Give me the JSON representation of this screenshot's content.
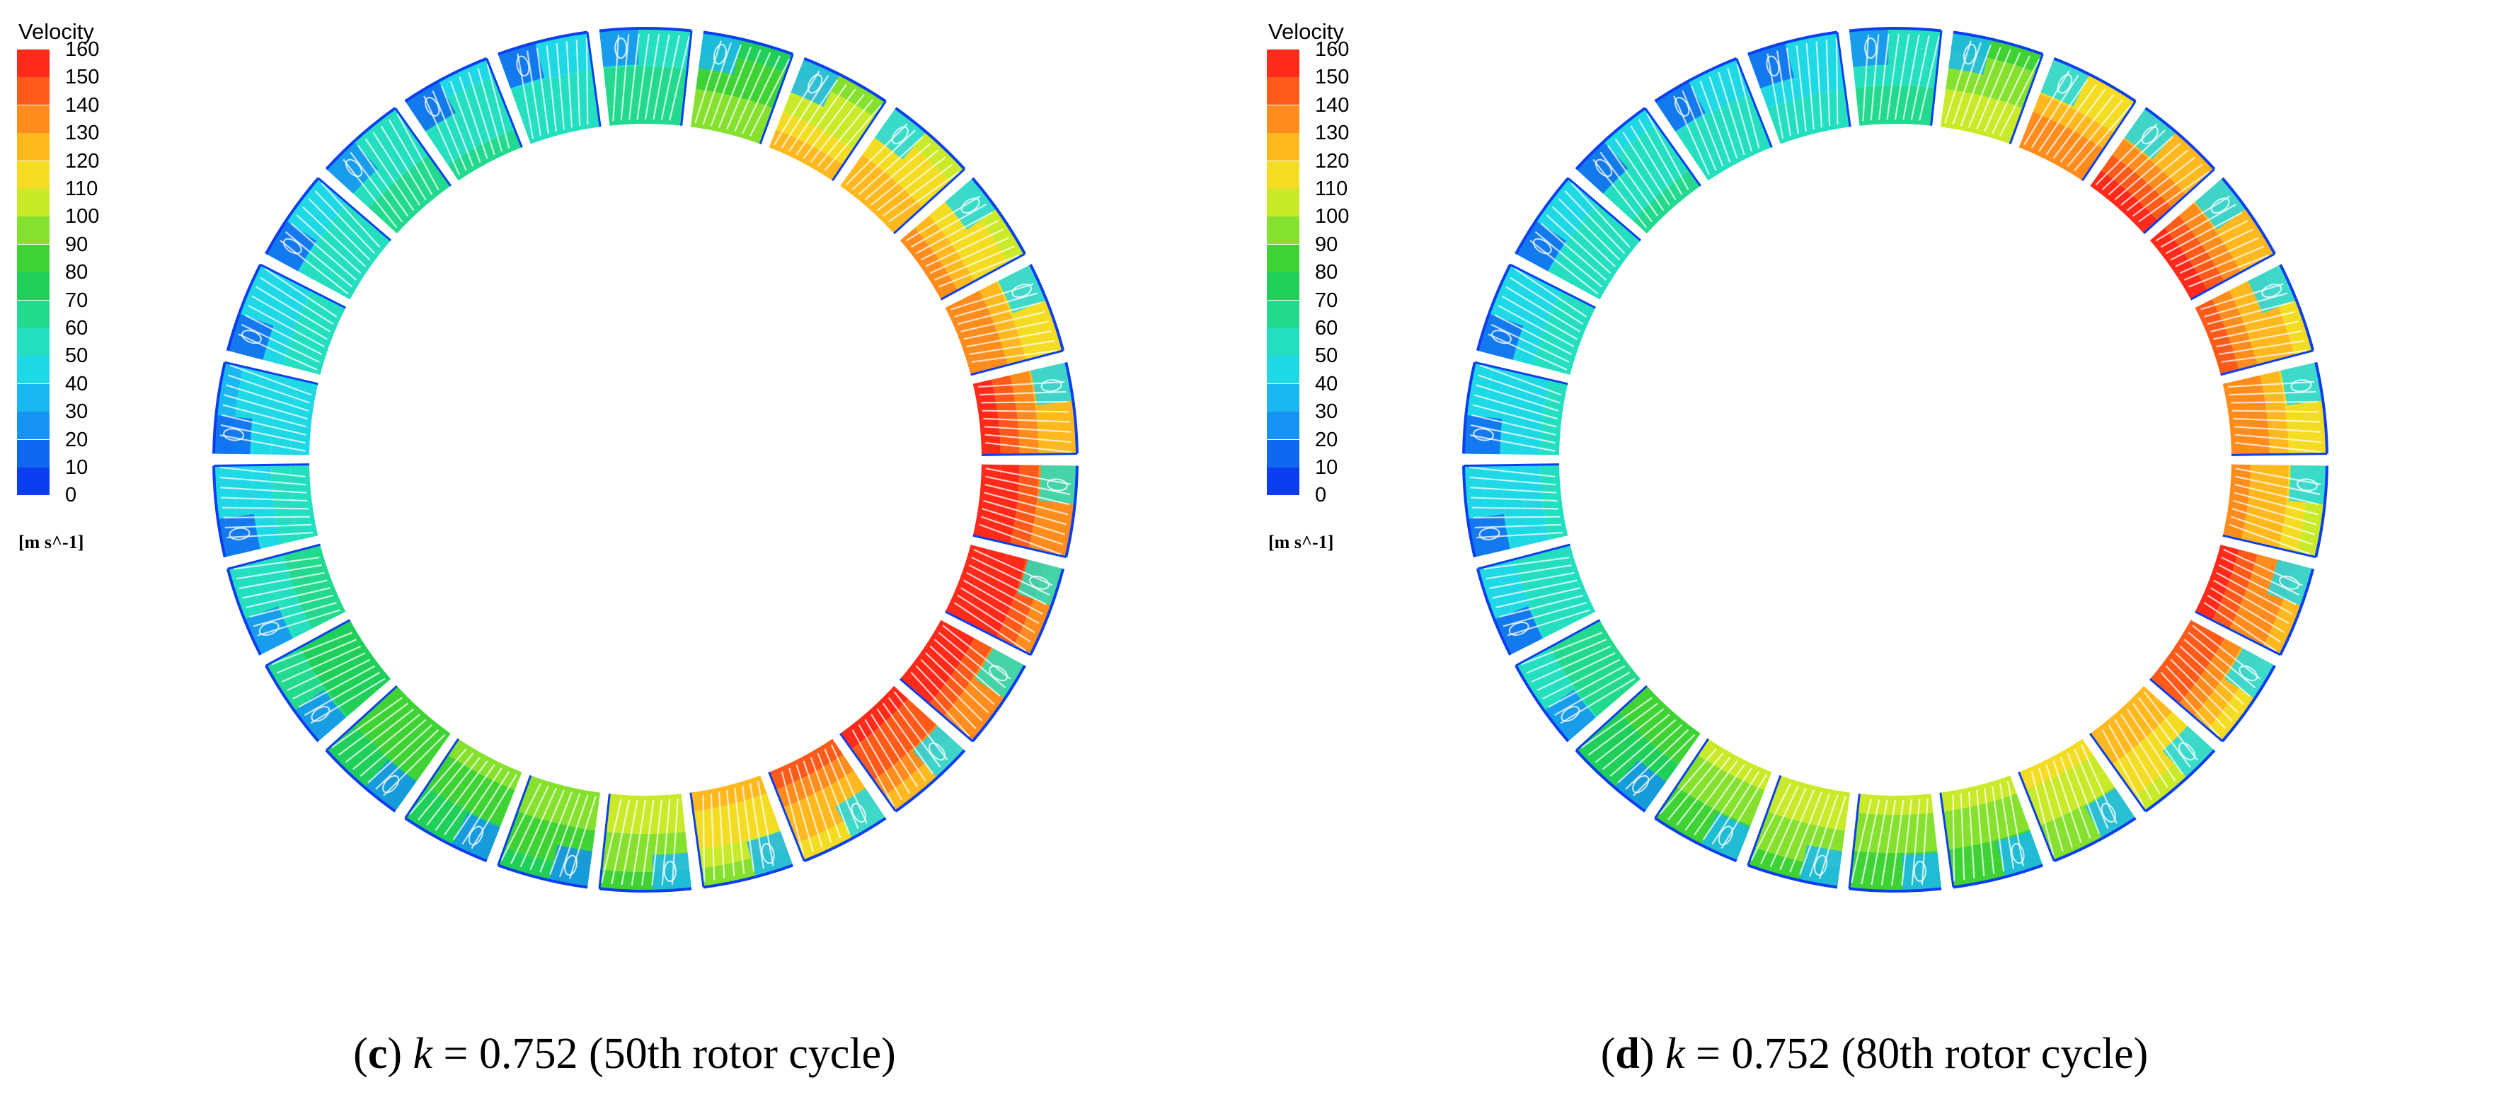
{
  "colorbar": {
    "title": "Velocity",
    "unit": "[m s^-1]",
    "ticks": [
      "160",
      "150",
      "140",
      "130",
      "120",
      "110",
      "100",
      "90",
      "80",
      "70",
      "60",
      "50",
      "40",
      "30",
      "20",
      "10",
      "0"
    ],
    "colors": [
      "#ff2a1a",
      "#ff5a1a",
      "#ff8c1c",
      "#ffb81e",
      "#f4dc22",
      "#c9ea28",
      "#86e02e",
      "#3fd234",
      "#1fcf5a",
      "#22d98e",
      "#24dfbf",
      "#1ed8e6",
      "#1ab8f0",
      "#1592f2",
      "#1068f0",
      "#0b3ef0"
    ]
  },
  "panels": [
    {
      "id": "c",
      "caption": {
        "open": "(",
        "letter": "c",
        "close": ")",
        "var": "k",
        "rest": " = 0.752 (50th rotor cycle)"
      },
      "passage_speeds": [
        62,
        88,
        108,
        116,
        118,
        124,
        136,
        146,
        150,
        146,
        140,
        128,
        110,
        95,
        85,
        82,
        80,
        70,
        58,
        48,
        44,
        48,
        52,
        58,
        55,
        50
      ]
    },
    {
      "id": "d",
      "caption": {
        "open": "(",
        "letter": "d",
        "close": ")",
        "var": "k",
        "rest": " = 0.752 (80th rotor cycle)"
      },
      "passage_speeds": [
        58,
        96,
        124,
        136,
        134,
        128,
        124,
        122,
        138,
        132,
        116,
        100,
        92,
        92,
        96,
        90,
        78,
        62,
        50,
        46,
        46,
        48,
        52,
        54,
        52,
        48
      ]
    }
  ]
}
